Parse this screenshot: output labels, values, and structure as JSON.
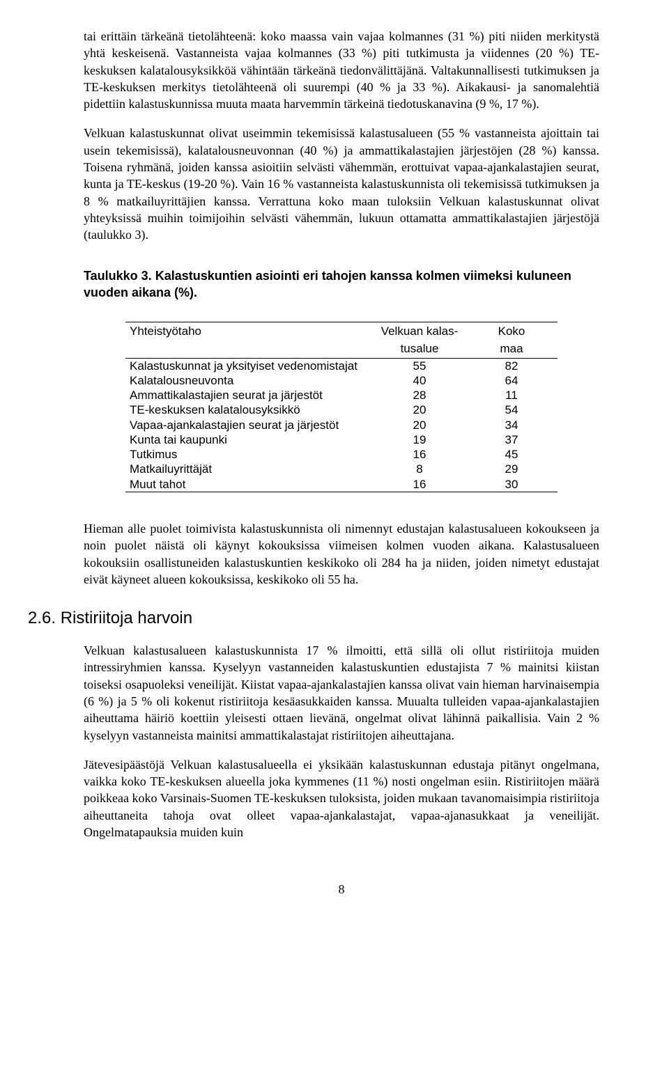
{
  "para1": "tai erittäin tärkeänä tietolähteenä: koko maassa vain vajaa kolmannes (31 %) piti niiden merkitystä yhtä keskeisenä. Vastanneista vajaa kolmannes (33 %) piti tutkimusta ja viidennes (20 %) TE-keskuksen kalatalousyksikköä vähintään tärkeänä tiedonvälittäjänä. Valtakunnallisesti tutkimuksen ja TE-keskuksen merkitys tietolähteenä oli suurempi (40 % ja 33 %). Aikakausi- ja sanomalehtiä pidettiin kalastuskunnissa muuta maata harvemmin tärkeinä tiedotuskanavina (9 %, 17 %).",
  "para2": "Velkuan kalastuskunnat olivat useimmin tekemisissä kalastusalueen (55 % vastanneista ajoittain tai usein tekemisissä), kalatalousneuvonnan (40 %) ja ammattikalastajien järjestöjen (28 %) kanssa. Toisena ryhmänä, joiden kanssa asioitiin selvästi vähemmän, erottuivat vapaa-ajankalastajien seurat, kunta ja TE-keskus (19-20 %). Vain 16 % vastanneista kalastuskunnista oli tekemisissä tutkimuksen ja 8 % matkailuyrittäjien kanssa. Verrattuna koko maan tuloksiin Velkuan kalastuskunnat olivat yhteyksissä muihin toimijoihin selvästi vähemmän, lukuun ottamatta ammattikalastajien järjestöjä (taulukko 3).",
  "table3": {
    "caption": "Taulukko 3. Kalastuskuntien asiointi eri tahojen kanssa kolmen viimeksi kuluneen vuoden aikana (%).",
    "header_col1": "Yhteistyötaho",
    "header_col2a": "Velkuan kalas-",
    "header_col2b": "tusalue",
    "header_col3a": "Koko",
    "header_col3b": "maa",
    "rows": [
      {
        "label": "Kalastuskunnat ja yksityiset vedenomistajat",
        "v": "55",
        "k": "82"
      },
      {
        "label": "Kalatalousneuvonta",
        "v": "40",
        "k": "64"
      },
      {
        "label": "Ammattikalastajien seurat ja järjestöt",
        "v": "28",
        "k": "11"
      },
      {
        "label": "TE-keskuksen kalatalousyksikkö",
        "v": "20",
        "k": "54"
      },
      {
        "label": "Vapaa-ajankalastajien seurat ja järjestöt",
        "v": "20",
        "k": "34"
      },
      {
        "label": "Kunta tai kaupunki",
        "v": "19",
        "k": "37"
      },
      {
        "label": "Tutkimus",
        "v": "16",
        "k": "45"
      },
      {
        "label": "Matkailuyrittäjät",
        "v": "8",
        "k": "29"
      },
      {
        "label": "Muut tahot",
        "v": "16",
        "k": "30"
      }
    ]
  },
  "para3": "Hieman alle puolet toimivista kalastuskunnista oli nimennyt edustajan kalastusalueen kokoukseen ja noin puolet näistä oli käynyt kokouksissa viimeisen kolmen vuoden aikana. Kalastusalueen kokouksiin osallistuneiden kalastuskuntien keskikoko oli 284 ha ja niiden, joiden nimetyt edustajat eivät käyneet alueen kokouksissa, keskikoko oli 55 ha.",
  "section_2_6_title": "2.6. Ristiriitoja harvoin",
  "para4": "Velkuan kalastusalueen kalastuskunnista 17 % ilmoitti, että sillä oli ollut ristiriitoja muiden intressiryhmien kanssa. Kyselyyn vastanneiden kalastuskuntien edustajista 7 % mainitsi kiistan toiseksi osapuoleksi veneilijät. Kiistat vapaa-ajankalastajien kanssa olivat vain hieman harvinaisempia (6 %) ja 5 % oli kokenut ristiriitoja kesäasukkaiden kanssa. Muualta tulleiden vapaa-ajankalastajien aiheuttama häiriö koettiin yleisesti ottaen lievänä, ongelmat olivat lähinnä paikallisia. Vain 2 % kyselyyn vastanneista mainitsi ammattikalastajat ristiriitojen aiheuttajana.",
  "para5": "Jätevesipäästöjä Velkuan kalastusalueella ei yksikään kalastuskunnan edustaja pitänyt ongelmana, vaikka koko TE-keskuksen alueella joka kymmenes (11 %) nosti ongelman esiin. Ristiriitojen määrä poikkeaa koko Varsinais-Suomen TE-keskuksen tuloksista, joiden mukaan tavanomaisimpia ristiriitoja aiheuttaneita tahoja ovat olleet vapaa-ajankalastajat, vapaa-ajanasukkaat ja veneilijät. Ongelmatapauksia muiden kuin",
  "pagenum": "8"
}
